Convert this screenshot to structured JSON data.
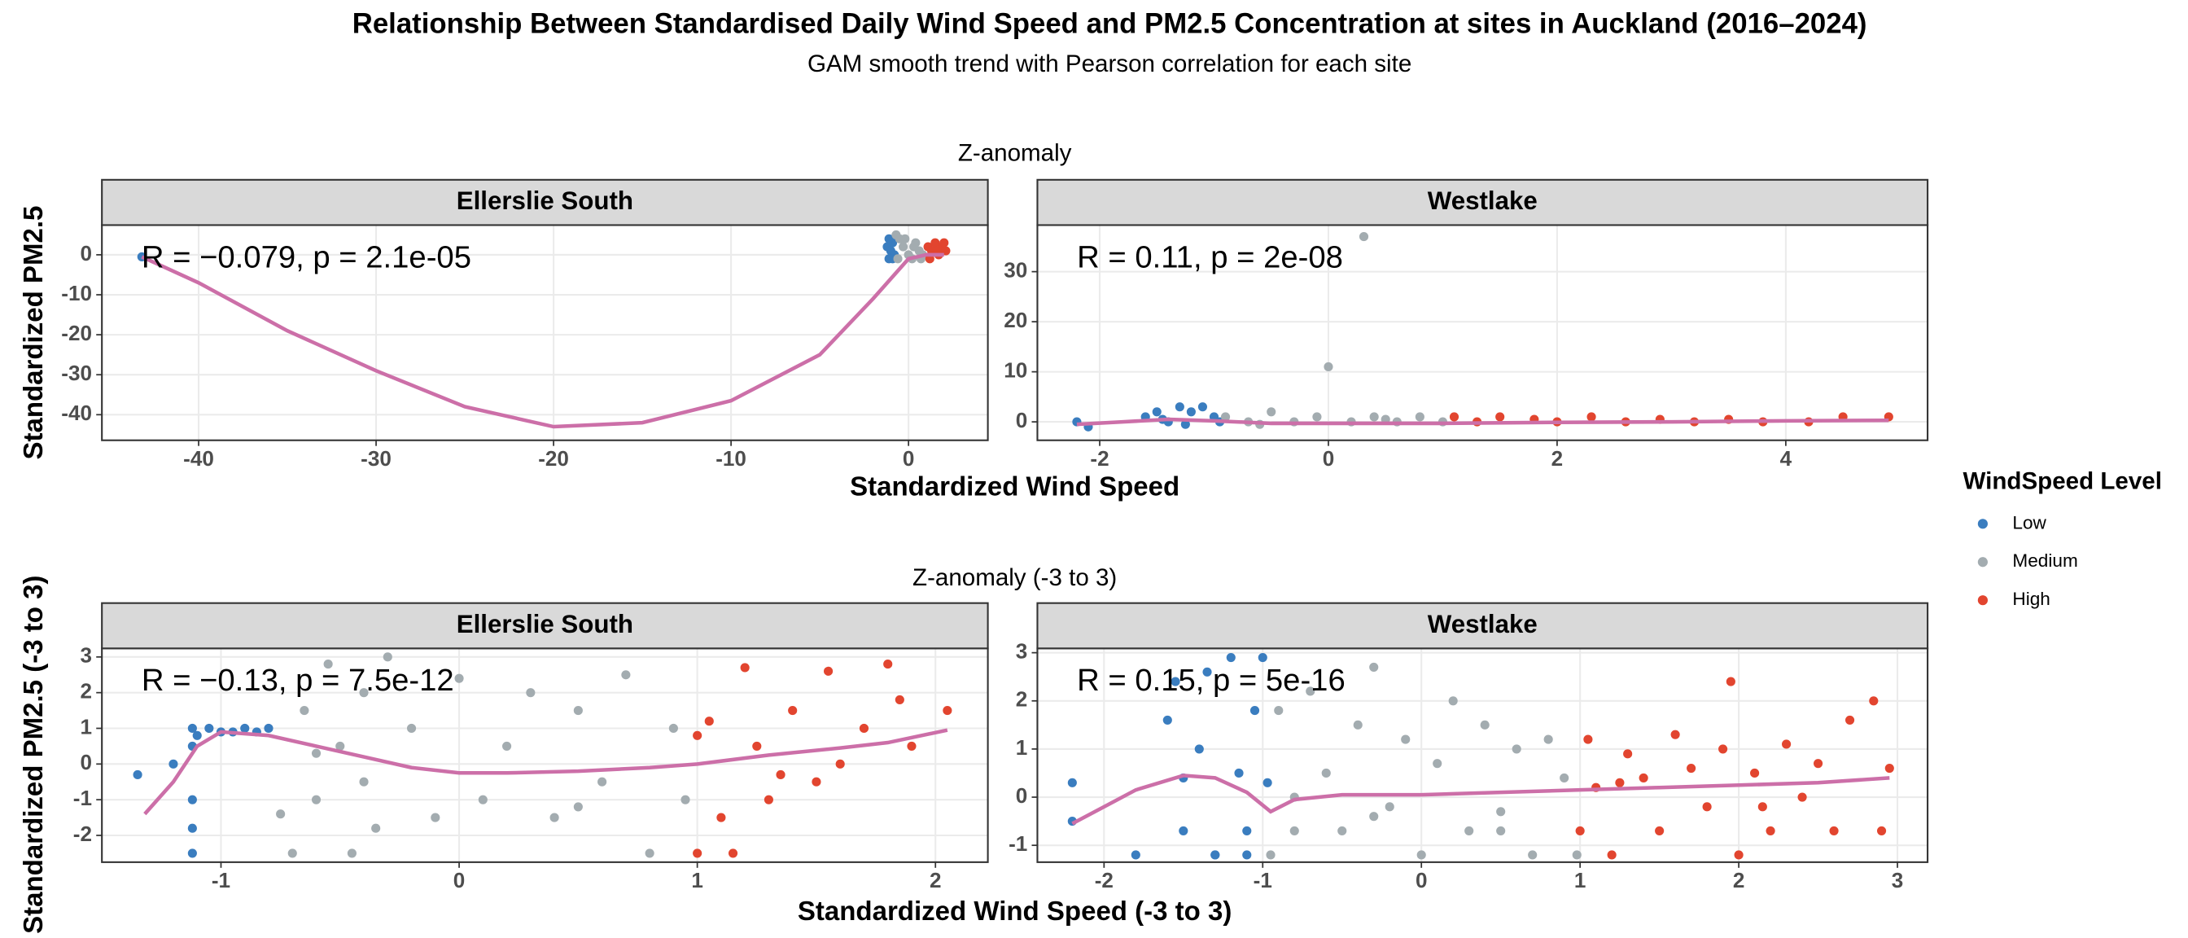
{
  "title": "Relationship Between Standardised Daily Wind Speed and PM2.5 Concentration at sites in Auckland (2016–2024)",
  "subtitle": "GAM smooth trend with Pearson correlation for each site",
  "legend_title": "WindSpeed Level",
  "rows": [
    {
      "title": "Z-anomaly",
      "xlabel": "Standardized Wind Speed",
      "ylabel": "Standardized PM2.5"
    },
    {
      "title": "Z-anomaly (-3 to 3)",
      "xlabel": "Standardized Wind Speed (-3 to 3)",
      "ylabel": "Standardized PM2.5 (-3 to 3)"
    }
  ],
  "chart_data": [
    {
      "type": "scatter",
      "title": "Ellerslie South",
      "annotation": "R = −0.079, p = 2.1e-05",
      "xlim": [
        -45.45,
        4.47
      ],
      "ylim": [
        -46.4,
        7.43
      ],
      "xticks": [
        -40,
        -30,
        -20,
        -10,
        0
      ],
      "yticks": [
        0,
        -10,
        -20,
        -30,
        -40
      ],
      "grid": true,
      "series": [
        {
          "name": "Low",
          "color": "#3a7dbf",
          "x": [
            -43.2,
            -1.2,
            -1.1,
            -1.0,
            -0.9,
            -0.8,
            -1.1,
            -0.9
          ],
          "values": [
            -0.5,
            2,
            -1,
            1,
            3,
            0,
            4,
            -1
          ]
        },
        {
          "name": "Medium",
          "color": "#a3acb0",
          "x": [
            -0.7,
            -0.5,
            -0.3,
            0,
            0.2,
            0.4,
            0.6,
            0.8,
            -0.6,
            -0.2,
            0.3,
            0.7
          ],
          "values": [
            5,
            4,
            2,
            0,
            -1,
            3,
            1,
            0,
            -1,
            4,
            2,
            -1
          ]
        },
        {
          "name": "High",
          "color": "#e2452f",
          "x": [
            1.1,
            1.3,
            1.5,
            1.7,
            1.9,
            2.1,
            1.2,
            1.6,
            2.0
          ],
          "values": [
            2,
            1,
            3,
            0,
            2,
            1,
            -1,
            1,
            3
          ]
        }
      ],
      "trend": {
        "color": "#cc6fa8",
        "x": [
          -43.2,
          -40,
          -35,
          -30,
          -25,
          -20,
          -15,
          -10,
          -5,
          -2,
          0,
          1,
          2
        ],
        "values": [
          -0.5,
          -7,
          -19,
          -29,
          -38,
          -43,
          -42,
          -36.5,
          -25,
          -11,
          -1,
          0,
          0
        ]
      }
    },
    {
      "type": "scatter",
      "title": "Westlake",
      "annotation": "R = 0.11, p = 2e-08",
      "xlim": [
        -2.545,
        5.24
      ],
      "ylim": [
        -3.68,
        39.3
      ],
      "xticks": [
        -2,
        0,
        2,
        4
      ],
      "yticks": [
        0,
        10,
        20,
        30
      ],
      "grid": true,
      "series": [
        {
          "name": "Low",
          "color": "#3a7dbf",
          "x": [
            -2.2,
            -2.1,
            -1.6,
            -1.5,
            -1.4,
            -1.3,
            -1.2,
            -1.1,
            -1.0,
            -0.95,
            -1.25,
            -1.45
          ],
          "values": [
            0,
            -1,
            1,
            2,
            0,
            3,
            2,
            3,
            1,
            0,
            -0.5,
            0.5
          ]
        },
        {
          "name": "Medium",
          "color": "#a3acb0",
          "x": [
            -0.9,
            -0.7,
            -0.5,
            -0.3,
            -0.1,
            0,
            0.2,
            0.31,
            0.4,
            0.6,
            0.8,
            1.0,
            -0.6,
            0.5
          ],
          "values": [
            1,
            0,
            2,
            0,
            1,
            11,
            0,
            37,
            1,
            0,
            1,
            0,
            -0.5,
            0.5
          ]
        },
        {
          "name": "High",
          "color": "#e2452f",
          "x": [
            1.1,
            1.3,
            1.5,
            1.8,
            2.0,
            2.3,
            2.6,
            2.9,
            3.2,
            3.5,
            3.8,
            4.2,
            4.5,
            4.9
          ],
          "values": [
            1,
            0,
            1,
            0.5,
            0,
            1,
            0,
            0.5,
            0,
            0.5,
            0,
            0,
            1,
            1
          ]
        }
      ],
      "trend": {
        "color": "#cc6fa8",
        "x": [
          -2.2,
          -1.8,
          -1.4,
          -1,
          -0.5,
          0,
          1,
          2,
          3,
          4,
          4.9
        ],
        "values": [
          -0.5,
          0,
          0.5,
          0.2,
          -0.3,
          -0.3,
          -0.3,
          -0.1,
          0,
          0.2,
          0.3
        ]
      }
    },
    {
      "type": "scatter",
      "title": "Ellerslie South",
      "annotation": "R = −0.13, p = 7.5e-12",
      "xlim": [
        -1.5,
        2.22
      ],
      "ylim": [
        -2.75,
        3.24
      ],
      "xticks": [
        -1,
        0,
        1,
        2
      ],
      "yticks": [
        -2,
        -1,
        0,
        1,
        2,
        3
      ],
      "grid": true,
      "series": [
        {
          "name": "Low",
          "color": "#3a7dbf",
          "x": [
            -1.35,
            -1.2,
            -1.12,
            -1.12,
            -1.12,
            -1.1,
            -1.05,
            -1,
            -0.95,
            -0.9,
            -0.85,
            -0.8,
            -1.12,
            -1.12
          ],
          "values": [
            -0.3,
            0,
            -2.5,
            1,
            -1,
            0.8,
            1,
            0.9,
            0.9,
            1,
            0.9,
            1,
            0.5,
            -1.8
          ]
        },
        {
          "name": "Medium",
          "color": "#a3acb0",
          "x": [
            -0.7,
            -0.65,
            -0.6,
            -0.55,
            -0.5,
            -0.45,
            -0.4,
            -0.35,
            -0.3,
            -0.2,
            -0.1,
            0,
            0.1,
            0.2,
            0.3,
            0.4,
            0.5,
            0.6,
            0.7,
            0.8,
            0.9,
            0.95,
            -0.75,
            -0.6,
            -0.4,
            0.5
          ],
          "values": [
            -2.5,
            1.5,
            -1,
            2.8,
            0.5,
            -2.5,
            2,
            -1.8,
            3,
            1,
            -1.5,
            2.4,
            -1,
            0.5,
            2,
            -1.5,
            1.5,
            -0.5,
            2.5,
            -2.5,
            1,
            -1,
            -1.4,
            0.3,
            -0.5,
            -1.2
          ]
        },
        {
          "name": "High",
          "color": "#e2452f",
          "x": [
            1.0,
            1.05,
            1.1,
            1.2,
            1.25,
            1.3,
            1.4,
            1.5,
            1.55,
            1.6,
            1.7,
            1.8,
            1.85,
            1.9,
            2.05,
            1.15,
            1.35,
            1.0
          ],
          "values": [
            -2.5,
            1.2,
            -1.5,
            2.7,
            0.5,
            -1,
            1.5,
            -0.5,
            2.6,
            0,
            1,
            2.8,
            1.8,
            0.5,
            1.5,
            -2.5,
            -0.3,
            0.8
          ]
        }
      ],
      "trend": {
        "color": "#cc6fa8",
        "x": [
          -1.32,
          -1.2,
          -1.1,
          -1.0,
          -0.8,
          -0.6,
          -0.4,
          -0.2,
          0,
          0.2,
          0.5,
          0.8,
          1,
          1.3,
          1.6,
          1.8,
          2.05
        ],
        "values": [
          -1.4,
          -0.5,
          0.5,
          0.9,
          0.8,
          0.5,
          0.2,
          -0.1,
          -0.25,
          -0.25,
          -0.2,
          -0.1,
          0,
          0.25,
          0.45,
          0.6,
          0.95
        ]
      }
    },
    {
      "type": "scatter",
      "title": "Westlake",
      "annotation": "R = 0.15, p = 5e-16",
      "xlim": [
        -2.42,
        3.19
      ],
      "ylim": [
        -1.35,
        3.09
      ],
      "xticks": [
        -2,
        -1,
        0,
        1,
        2,
        3
      ],
      "yticks": [
        -1,
        0,
        1,
        2,
        3
      ],
      "grid": true,
      "series": [
        {
          "name": "Low",
          "color": "#3a7dbf",
          "x": [
            -2.2,
            -2.2,
            -1.8,
            -1.6,
            -1.55,
            -1.5,
            -1.4,
            -1.35,
            -1.3,
            -1.2,
            -1.15,
            -1.1,
            -1.05,
            -1,
            -0.97,
            -1.3,
            -1.1,
            -1.5
          ],
          "values": [
            -0.5,
            0.3,
            -1.2,
            1.6,
            2.4,
            -0.7,
            1.0,
            2.6,
            -1.2,
            2.9,
            0.5,
            -0.7,
            1.8,
            2.9,
            0.3,
            -1.2,
            -1.2,
            0.4
          ]
        },
        {
          "name": "Medium",
          "color": "#a3acb0",
          "x": [
            -0.95,
            -0.9,
            -0.8,
            -0.7,
            -0.6,
            -0.5,
            -0.4,
            -0.3,
            -0.2,
            -0.1,
            0,
            0.1,
            0.2,
            0.3,
            0.4,
            0.5,
            0.6,
            0.7,
            0.8,
            0.9,
            0.98,
            -0.8,
            -0.3,
            0.5
          ],
          "values": [
            -1.2,
            1.8,
            -0.7,
            2.2,
            0.5,
            -0.7,
            1.5,
            2.7,
            -0.2,
            1.2,
            -1.2,
            0.7,
            2,
            -0.7,
            1.5,
            -0.3,
            1,
            -1.2,
            1.2,
            0.4,
            -1.2,
            0,
            -0.4,
            -0.7
          ]
        },
        {
          "name": "High",
          "color": "#e2452f",
          "x": [
            1.0,
            1.05,
            1.1,
            1.2,
            1.3,
            1.4,
            1.5,
            1.6,
            1.7,
            1.8,
            1.9,
            1.95,
            2.0,
            2.1,
            2.2,
            2.3,
            2.4,
            2.5,
            2.6,
            2.7,
            2.85,
            2.9,
            2.95,
            1.25,
            2.15
          ],
          "values": [
            -0.7,
            1.2,
            0.2,
            -1.2,
            0.9,
            0.4,
            -0.7,
            1.3,
            0.6,
            -0.2,
            1,
            2.4,
            -1.2,
            0.5,
            -0.7,
            1.1,
            0,
            0.7,
            -0.7,
            1.6,
            2,
            -0.7,
            0.6,
            0.3,
            -0.2
          ]
        }
      ],
      "trend": {
        "color": "#cc6fa8",
        "x": [
          -2.2,
          -2,
          -1.8,
          -1.5,
          -1.3,
          -1.1,
          -0.95,
          -0.8,
          -0.5,
          0,
          0.5,
          1,
          1.5,
          2,
          2.5,
          2.95
        ],
        "values": [
          -0.55,
          -0.2,
          0.15,
          0.45,
          0.4,
          0.1,
          -0.3,
          -0.05,
          0.05,
          0.05,
          0.1,
          0.15,
          0.2,
          0.25,
          0.3,
          0.4
        ]
      }
    }
  ]
}
